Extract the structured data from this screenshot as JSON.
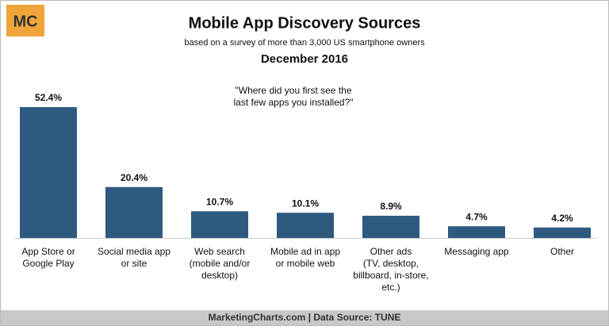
{
  "chart_data": {
    "type": "bar",
    "logo": "MC",
    "title": "Mobile App Discovery Sources",
    "subtitle": "based on a survey of more than 3,000 US smartphone owners",
    "date": "December 2016",
    "annotation": [
      "\"Where did you first see the",
      "last few apps you installed?\""
    ],
    "categories": [
      [
        "App Store or",
        "Google Play"
      ],
      [
        "Social media app",
        "or site"
      ],
      [
        "Web search",
        "(mobile and/or",
        "desktop)"
      ],
      [
        "Mobile ad in app",
        "or mobile web"
      ],
      [
        "Other ads",
        "(TV, desktop,",
        "billboard, in-store,",
        "etc.)"
      ],
      [
        "Messaging app"
      ],
      [
        "Other"
      ]
    ],
    "values": [
      52.4,
      20.4,
      10.7,
      10.1,
      8.9,
      4.7,
      4.2
    ],
    "value_labels": [
      "52.4%",
      "20.4%",
      "10.7%",
      "10.1%",
      "8.9%",
      "4.7%",
      "4.2%"
    ],
    "color": "#2e5a80",
    "footer": "MarketingCharts.com | Data Source: TUNE"
  }
}
